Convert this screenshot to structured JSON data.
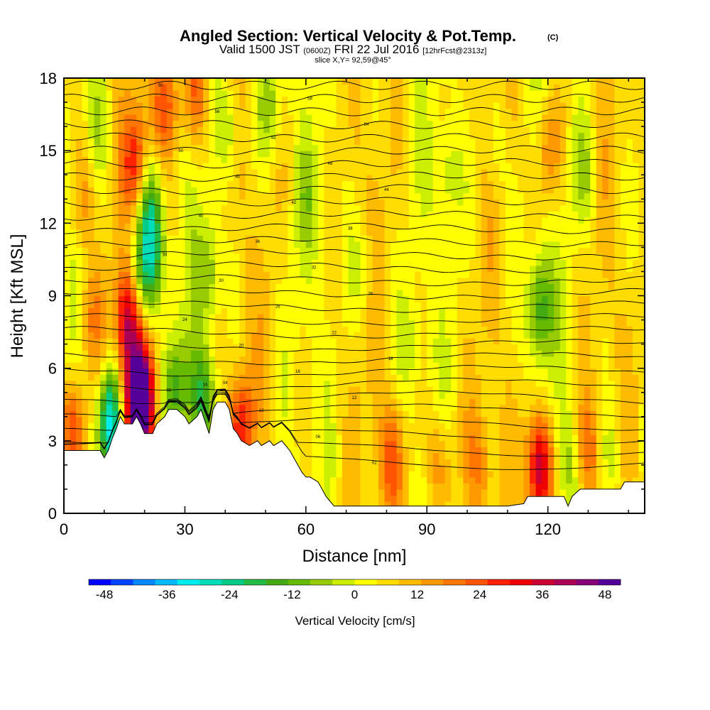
{
  "chart_data": {
    "type": "heatmap",
    "title": "Angled Section: Vertical Velocity & Pot.Temp.",
    "title_unit": "(C)",
    "subtitle_parts": [
      {
        "text": "Valid 1500 JST ",
        "small": false
      },
      {
        "text": "(0600Z)",
        "small": true
      },
      {
        "text": " FRI 22 Jul 2016 ",
        "small": false
      },
      {
        "text": "[12hrFcst@2313z]",
        "small": true
      }
    ],
    "subtitle2": "slice X,Y= 92,59@45°",
    "xlabel": "Distance [nm]",
    "ylabel": "Height [Kft MSL]",
    "xlim": [
      0,
      144
    ],
    "ylim": [
      0,
      18
    ],
    "x_ticks": [
      0,
      30,
      60,
      90,
      120
    ],
    "y_ticks": [
      0,
      3,
      6,
      9,
      12,
      15,
      18
    ],
    "colorbar": {
      "label": "Vertical Velocity [cm/s]",
      "ticks": [
        -48,
        -36,
        -24,
        -12,
        0,
        12,
        24,
        36,
        48
      ],
      "range": [
        -51,
        51
      ],
      "step": 4,
      "colors": [
        "#0000ff",
        "#0044ff",
        "#0088ff",
        "#00bbff",
        "#00eeee",
        "#00ddbb",
        "#00cc88",
        "#22bb44",
        "#44aa11",
        "#66bb00",
        "#99cc00",
        "#ccee00",
        "#ffff00",
        "#ffdd00",
        "#ffbb00",
        "#ff9900",
        "#ff7700",
        "#ff5500",
        "#ff2200",
        "#ee0000",
        "#cc0033",
        "#aa0055",
        "#880077",
        "#550099"
      ]
    },
    "terrain_profile": [
      [
        0,
        2.6
      ],
      [
        9,
        2.6
      ],
      [
        10,
        2.3
      ],
      [
        11,
        2.6
      ],
      [
        12,
        3.1
      ],
      [
        13,
        3.5
      ],
      [
        14,
        4.0
      ],
      [
        15,
        3.7
      ],
      [
        17,
        3.7
      ],
      [
        18,
        4.0
      ],
      [
        19,
        3.7
      ],
      [
        20,
        3.3
      ],
      [
        22,
        3.3
      ],
      [
        23,
        3.7
      ],
      [
        25,
        4.0
      ],
      [
        26,
        4.3
      ],
      [
        28,
        4.3
      ],
      [
        30,
        4.0
      ],
      [
        31,
        3.7
      ],
      [
        33,
        4.0
      ],
      [
        34,
        4.3
      ],
      [
        36,
        3.3
      ],
      [
        37,
        4.3
      ],
      [
        38,
        4.6
      ],
      [
        40,
        4.6
      ],
      [
        41,
        4.3
      ],
      [
        42,
        3.5
      ],
      [
        43,
        3.3
      ],
      [
        44,
        3.0
      ],
      [
        46,
        2.8
      ],
      [
        48,
        3.0
      ],
      [
        49,
        2.8
      ],
      [
        51,
        3.0
      ],
      [
        52,
        2.8
      ],
      [
        54,
        3.0
      ],
      [
        56,
        2.6
      ],
      [
        57,
        2.3
      ],
      [
        58,
        2.0
      ],
      [
        59,
        1.7
      ],
      [
        60,
        1.5
      ],
      [
        61,
        1.5
      ],
      [
        63,
        1.3
      ],
      [
        64,
        1.0
      ],
      [
        65,
        0.7
      ],
      [
        66,
        0.5
      ],
      [
        67,
        0.3
      ],
      [
        80,
        0.3
      ],
      [
        95,
        0.3
      ],
      [
        110,
        0.3
      ],
      [
        114,
        0.4
      ],
      [
        115,
        0.7
      ],
      [
        124,
        0.7
      ],
      [
        125,
        0.3
      ],
      [
        126,
        0.7
      ],
      [
        128,
        1.0
      ],
      [
        138,
        1.0
      ],
      [
        139,
        1.3
      ],
      [
        144,
        1.3
      ]
    ],
    "velocity_features": [
      {
        "x": 18,
        "y": 14.5,
        "value": 22
      },
      {
        "x": 16,
        "y": 8.0,
        "value": 32
      },
      {
        "x": 19,
        "y": 4.7,
        "value": 50
      },
      {
        "x": 14,
        "y": 4.3,
        "value": 34
      },
      {
        "x": 12,
        "y": 3.6,
        "value": -40
      },
      {
        "x": 13,
        "y": 4.6,
        "value": -22
      },
      {
        "x": 2,
        "y": 3.5,
        "value": 20
      },
      {
        "x": 22,
        "y": 11,
        "value": -22
      },
      {
        "x": 21,
        "y": 13,
        "value": -14
      },
      {
        "x": 19,
        "y": 9.5,
        "value": -16
      },
      {
        "x": 36,
        "y": 10,
        "value": -14
      },
      {
        "x": 34,
        "y": 4.8,
        "value": -20
      },
      {
        "x": 28,
        "y": 5.2,
        "value": -14
      },
      {
        "x": 41,
        "y": 16,
        "value": -10
      },
      {
        "x": 51,
        "y": 17,
        "value": -12
      },
      {
        "x": 25,
        "y": 17,
        "value": 20
      },
      {
        "x": 33,
        "y": 17.5,
        "value": 16
      },
      {
        "x": 44,
        "y": 3.6,
        "value": 20
      },
      {
        "x": 118,
        "y": 8.5,
        "value": -20
      },
      {
        "x": 118,
        "y": 1.8,
        "value": 36
      },
      {
        "x": 81,
        "y": 2.2,
        "value": 16
      },
      {
        "x": 93,
        "y": 2.0,
        "value": 12
      },
      {
        "x": 103,
        "y": 2.0,
        "value": 10
      },
      {
        "x": 130,
        "y": 2.5,
        "value": 14
      },
      {
        "x": 125,
        "y": 2.0,
        "value": -10
      },
      {
        "x": 135,
        "y": 2.2,
        "value": -8
      },
      {
        "x": 129,
        "y": 14,
        "value": -8
      },
      {
        "x": 107,
        "y": 15,
        "value": -6
      },
      {
        "x": 95,
        "y": 14,
        "value": -8
      },
      {
        "x": 120,
        "y": 15,
        "value": 12
      },
      {
        "x": 60,
        "y": 13,
        "value": -6
      },
      {
        "x": 74,
        "y": 10,
        "value": -6
      },
      {
        "x": 86,
        "y": 7,
        "value": -6
      },
      {
        "x": 7,
        "y": 8,
        "value": 10
      },
      {
        "x": 5,
        "y": 13,
        "value": 10
      },
      {
        "x": 9,
        "y": 16,
        "value": -6
      }
    ],
    "theta_levels": [
      {
        "label": "60",
        "lx": 54
      },
      {
        "label": "58",
        "lx": 54
      },
      {
        "label": "56",
        "lx": 54
      },
      {
        "label": "54",
        "lx": 54
      },
      {
        "label": "52",
        "lx": 54
      },
      {
        "label": "50",
        "lx": 54
      },
      {
        "label": "48",
        "lx": 54
      },
      {
        "label": "46",
        "lx": 54
      },
      {
        "label": "44",
        "lx": 54
      },
      {
        "label": "42",
        "lx": 54
      },
      {
        "label": "40",
        "lx": 54
      },
      {
        "label": "38",
        "lx": 54
      },
      {
        "label": "36",
        "lx": 54
      },
      {
        "label": "34",
        "lx": 54
      },
      {
        "label": "32",
        "lx": 54
      },
      {
        "label": "30",
        "lx": 54
      },
      {
        "label": "28",
        "lx": 54
      },
      {
        "label": "26",
        "lx": 54
      },
      {
        "label": "24",
        "lx": 54
      },
      {
        "label": "22",
        "lx": 54
      },
      {
        "label": "20",
        "lx": 54
      },
      {
        "label": "18",
        "lx": 54
      },
      {
        "label": "16",
        "lx": 54
      },
      {
        "label": "14",
        "lx": 54
      },
      {
        "label": "12",
        "lx": 54
      },
      {
        "label": "10",
        "lx": 54
      },
      {
        "label": "08",
        "lx": 54
      },
      {
        "label": "06",
        "lx": 54
      },
      {
        "label": "04",
        "lx": 54
      },
      {
        "label": "02",
        "lx": 54
      }
    ]
  }
}
